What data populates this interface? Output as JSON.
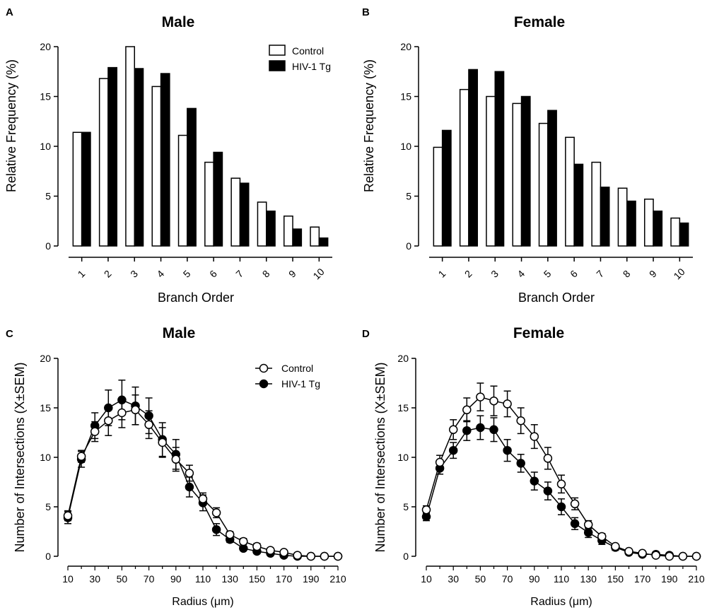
{
  "colors": {
    "control_fill": "#ffffff",
    "tg_fill": "#000000",
    "stroke": "#000000"
  },
  "chart_data": [
    {
      "panel": "A",
      "type": "bar",
      "title": "Male",
      "xlabel": "Branch  Order",
      "ylabel": "Relative Frequency (%)",
      "ylim": [
        0,
        20
      ],
      "yticks": [
        "0",
        "5",
        "10",
        "15",
        "20"
      ],
      "categories": [
        "1",
        "2",
        "3",
        "4",
        "5",
        "6",
        "7",
        "8",
        "9",
        "10"
      ],
      "legend": {
        "position": "top-right",
        "entries": [
          "Control",
          "HIV-1 Tg"
        ]
      },
      "series": [
        {
          "name": "Control",
          "values": [
            11.4,
            16.8,
            20.0,
            16.0,
            11.1,
            8.4,
            6.8,
            4.4,
            3.0,
            1.9
          ]
        },
        {
          "name": "HIV-1 Tg",
          "values": [
            11.4,
            17.9,
            17.8,
            17.3,
            13.8,
            9.4,
            6.3,
            3.5,
            1.7,
            0.8
          ]
        }
      ]
    },
    {
      "panel": "B",
      "type": "bar",
      "title": "Female",
      "xlabel": "Branch  Order",
      "ylabel": "Relative Frequency (%)",
      "ylim": [
        0,
        20
      ],
      "yticks": [
        "0",
        "5",
        "10",
        "15",
        "20"
      ],
      "categories": [
        "1",
        "2",
        "3",
        "4",
        "5",
        "6",
        "7",
        "8",
        "9",
        "10"
      ],
      "series": [
        {
          "name": "Control",
          "values": [
            9.9,
            15.7,
            15.0,
            14.3,
            12.3,
            10.9,
            8.4,
            5.8,
            4.7,
            2.8
          ]
        },
        {
          "name": "HIV-1 Tg",
          "values": [
            11.6,
            17.7,
            17.5,
            15.0,
            13.6,
            8.2,
            5.9,
            4.5,
            3.5,
            2.3
          ]
        }
      ]
    },
    {
      "panel": "C",
      "type": "line",
      "title": "Male",
      "xlabel": "Radius (μm)",
      "ylabel": "Number of Intersections (X±SEM)",
      "ylim": [
        0,
        20
      ],
      "yticks": [
        "0",
        "5",
        "10",
        "15",
        "20"
      ],
      "xlim": [
        10,
        210
      ],
      "xticks": [
        "10",
        "30",
        "50",
        "70",
        "90",
        "110",
        "130",
        "150",
        "170",
        "190",
        "210"
      ],
      "x": [
        10,
        20,
        30,
        40,
        50,
        60,
        70,
        80,
        90,
        100,
        110,
        120,
        130,
        140,
        150,
        160,
        170,
        180,
        190,
        200,
        210
      ],
      "legend": {
        "position": "top-right",
        "entries": [
          "Control",
          "HIV-1 Tg"
        ]
      },
      "series": [
        {
          "name": "Control",
          "values": [
            4.1,
            10.1,
            12.6,
            13.7,
            14.5,
            14.8,
            13.3,
            11.5,
            9.8,
            8.4,
            5.8,
            4.4,
            2.2,
            1.5,
            1.0,
            0.6,
            0.4,
            0.1,
            0.0,
            0.0,
            0.0
          ],
          "errors": [
            0.5,
            0.6,
            1.0,
            1.5,
            1.5,
            1.5,
            1.4,
            1.5,
            1.2,
            0.8,
            0.6,
            0.5,
            0.3,
            0.3,
            0.3,
            0.2,
            0.2,
            0.1,
            0.0,
            0.0,
            0.0
          ]
        },
        {
          "name": "HIV-1 Tg",
          "values": [
            3.9,
            9.8,
            13.2,
            15.0,
            15.8,
            15.2,
            14.2,
            11.8,
            10.3,
            7.0,
            5.4,
            2.7,
            1.7,
            0.8,
            0.5,
            0.3,
            0.1,
            0.0,
            0.0,
            0.0,
            0.0
          ],
          "errors": [
            0.6,
            0.8,
            1.3,
            1.8,
            2.0,
            1.9,
            1.8,
            1.7,
            1.5,
            1.0,
            0.8,
            0.6,
            0.3,
            0.2,
            0.2,
            0.1,
            0.1,
            0.0,
            0.0,
            0.0,
            0.0
          ]
        }
      ]
    },
    {
      "panel": "D",
      "type": "line",
      "title": "Female",
      "xlabel": "Radius (μm)",
      "ylabel": "Number of Intersections (X±SEM)",
      "ylim": [
        0,
        20
      ],
      "yticks": [
        "0",
        "5",
        "10",
        "15",
        "20"
      ],
      "xlim": [
        10,
        210
      ],
      "xticks": [
        "10",
        "30",
        "50",
        "70",
        "90",
        "110",
        "130",
        "150",
        "170",
        "190",
        "210"
      ],
      "x": [
        10,
        20,
        30,
        40,
        50,
        60,
        70,
        80,
        90,
        100,
        110,
        120,
        130,
        140,
        150,
        160,
        170,
        180,
        190,
        200,
        210
      ],
      "series": [
        {
          "name": "Control",
          "values": [
            4.7,
            9.5,
            12.8,
            14.8,
            16.1,
            15.7,
            15.4,
            13.7,
            12.1,
            9.9,
            7.3,
            5.3,
            3.2,
            2.0,
            1.0,
            0.5,
            0.3,
            0.1,
            0.0,
            0.0,
            0.0
          ],
          "errors": [
            0.4,
            0.7,
            1.0,
            1.2,
            1.4,
            1.5,
            1.3,
            1.3,
            1.2,
            1.1,
            0.9,
            0.6,
            0.4,
            0.3,
            0.2,
            0.1,
            0.1,
            0.1,
            0.0,
            0.0,
            0.0
          ]
        },
        {
          "name": "HIV-1 Tg",
          "values": [
            4.0,
            8.9,
            10.7,
            12.7,
            13.0,
            12.8,
            10.7,
            9.4,
            7.6,
            6.6,
            5.0,
            3.3,
            2.4,
            1.6,
            0.9,
            0.4,
            0.2,
            0.2,
            0.1,
            0.0,
            0.0
          ],
          "errors": [
            0.4,
            0.6,
            0.8,
            1.0,
            1.2,
            1.2,
            1.1,
            0.9,
            0.9,
            0.9,
            0.8,
            0.6,
            0.5,
            0.4,
            0.3,
            0.2,
            0.1,
            0.1,
            0.0,
            0.0,
            0.0
          ]
        }
      ]
    }
  ]
}
